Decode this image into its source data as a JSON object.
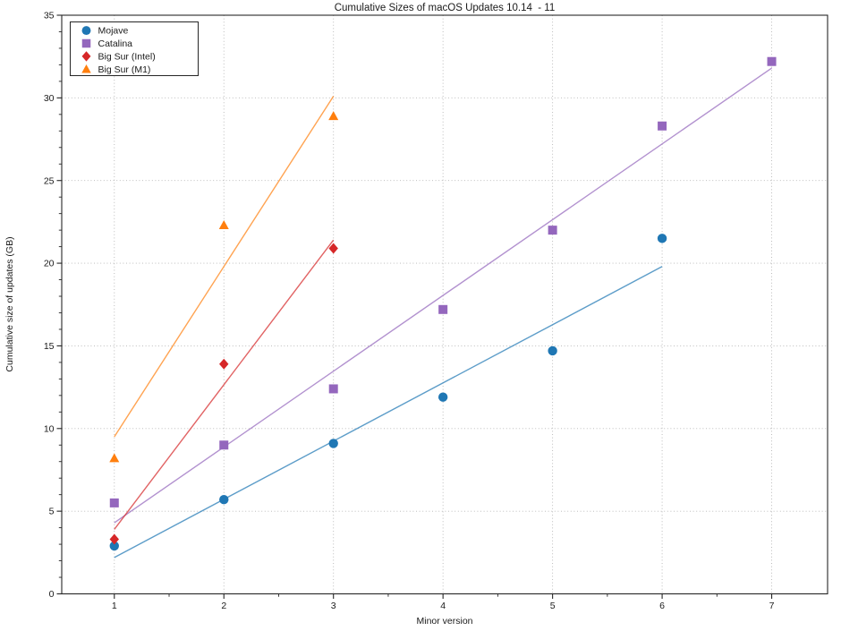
{
  "figure": {
    "background": "#ffffff"
  },
  "chart_data": {
    "type": "scatter",
    "title": "Cumulative Sizes of macOS Updates 10.14  - 11",
    "xlabel": "Minor version",
    "ylabel": "Cumulative size of updates (GB)",
    "xlim": [
      0.52,
      7.51
    ],
    "ylim": [
      0,
      35
    ],
    "x_major_ticks": [
      1,
      2,
      3,
      4,
      5,
      6,
      7
    ],
    "x_minor_ticks": [
      1.5,
      2.5,
      3.5,
      4.5,
      5.5,
      6.5
    ],
    "y_major_ticks": [
      0,
      5,
      10,
      15,
      20,
      25,
      30,
      35
    ],
    "y_minor_step": 1,
    "grid": true,
    "grid_color": "#b5b5b5",
    "frame_color": "#262626",
    "legend_position": "upper left",
    "series": [
      {
        "name": "Mojave",
        "marker": "circle",
        "color": "#1f77b4",
        "x": [
          1,
          2,
          3,
          4,
          5,
          6
        ],
        "y": [
          2.9,
          5.7,
          9.1,
          11.9,
          14.7,
          21.5
        ],
        "fit_line": {
          "x1": 1,
          "y1": 2.2,
          "x2": 6,
          "y2": 19.8
        }
      },
      {
        "name": "Catalina",
        "marker": "square",
        "color": "#9467bd",
        "x": [
          1,
          2,
          3,
          4,
          5,
          6,
          7
        ],
        "y": [
          5.5,
          9.0,
          12.4,
          17.2,
          22.0,
          28.3,
          32.2
        ],
        "fit_line": {
          "x1": 1,
          "y1": 4.3,
          "x2": 7,
          "y2": 31.8
        }
      },
      {
        "name": "Big Sur (Intel)",
        "marker": "diamond",
        "color": "#d62728",
        "x": [
          1,
          2,
          3
        ],
        "y": [
          3.3,
          13.9,
          20.9
        ],
        "fit_line": {
          "x1": 1,
          "y1": 3.9,
          "x2": 3,
          "y2": 21.4
        }
      },
      {
        "name": "Big Sur (M1)",
        "marker": "triangle",
        "color": "#ff7f0e",
        "x": [
          1,
          2,
          3
        ],
        "y": [
          8.2,
          22.3,
          28.9
        ],
        "fit_line": {
          "x1": 1,
          "y1": 9.5,
          "x2": 3,
          "y2": 30.1
        }
      }
    ]
  }
}
